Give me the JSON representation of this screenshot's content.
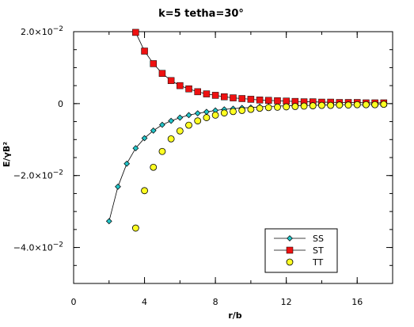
{
  "chart_data": {
    "type": "scatter",
    "title": "k=5 tetha=30°",
    "xlabel": "r/b",
    "ylabel": "E/γB²",
    "xlim": [
      0,
      18
    ],
    "ylim": [
      -0.05,
      0.02
    ],
    "x_ticks": [
      {
        "value": 0,
        "label": "0"
      },
      {
        "value": 4,
        "label": "4"
      },
      {
        "value": 8,
        "label": "8"
      },
      {
        "value": 12,
        "label": "12"
      },
      {
        "value": 16,
        "label": "16"
      }
    ],
    "y_ticks": [
      {
        "value": 0.02,
        "label": "2.0×10",
        "exp": "−2"
      },
      {
        "value": 0,
        "label": "0",
        "exp": ""
      },
      {
        "value": -0.02,
        "label": "−2.0×10",
        "exp": "−2"
      },
      {
        "value": -0.04,
        "label": "−4.0×10",
        "exp": "−2"
      }
    ],
    "legend_position": "bottom-right",
    "series": [
      {
        "name": "SS",
        "marker": "diamond",
        "color": "#22c4c8",
        "line": true,
        "x": [
          2,
          2.5,
          3,
          3.5,
          4,
          4.5,
          5,
          5.5,
          6,
          6.5,
          7,
          7.5,
          8,
          8.5,
          9,
          9.5,
          10,
          10.5,
          11,
          11.5,
          12,
          12.5,
          13,
          13.5,
          14,
          14.5,
          15,
          15.5,
          16,
          16.5,
          17,
          17.5
        ],
        "y": [
          -0.0327,
          -0.0231,
          -0.0167,
          -0.0124,
          -0.0096,
          -0.0075,
          -0.0059,
          -0.0048,
          -0.0039,
          -0.0032,
          -0.0027,
          -0.0023,
          -0.0019,
          -0.0016,
          -0.0014,
          -0.0012,
          -0.0011,
          -0.0009,
          -0.0008,
          -0.0007,
          -0.0006,
          -0.0006,
          -0.0005,
          -0.0005,
          -0.0004,
          -0.0004,
          -0.0003,
          -0.0003,
          -0.0003,
          -0.0003,
          -0.0002,
          -0.0002
        ]
      },
      {
        "name": "ST",
        "marker": "square",
        "color": "#ee1111",
        "line": true,
        "x": [
          3.5,
          4,
          4.5,
          5,
          5.5,
          6,
          6.5,
          7,
          7.5,
          8,
          8.5,
          9,
          9.5,
          10,
          10.5,
          11,
          11.5,
          12,
          12.5,
          13,
          13.5,
          14,
          14.5,
          15,
          15.5,
          16,
          16.5,
          17,
          17.5
        ],
        "y": [
          0.0198,
          0.0146,
          0.0111,
          0.0084,
          0.0064,
          0.005,
          0.0041,
          0.0033,
          0.0027,
          0.0023,
          0.0019,
          0.0016,
          0.0014,
          0.0012,
          0.001,
          0.0009,
          0.0008,
          0.0007,
          0.0006,
          0.0005,
          0.0005,
          0.0004,
          0.0004,
          0.0003,
          0.0003,
          0.0003,
          0.0002,
          0.0002,
          0.0002
        ]
      },
      {
        "name": "TT",
        "marker": "circle",
        "color": "#ffff22",
        "line": false,
        "x": [
          3.5,
          4,
          4.5,
          5,
          5.5,
          6,
          6.5,
          7,
          7.5,
          8,
          8.5,
          9,
          9.5,
          10,
          10.5,
          11,
          11.5,
          12,
          12.5,
          13,
          13.5,
          14,
          14.5,
          15,
          15.5,
          16,
          16.5,
          17,
          17.5
        ],
        "y": [
          -0.0346,
          -0.0242,
          -0.0177,
          -0.0133,
          -0.0098,
          -0.0076,
          -0.006,
          -0.0048,
          -0.0039,
          -0.0032,
          -0.0026,
          -0.0022,
          -0.0019,
          -0.0016,
          -0.0013,
          -0.0011,
          -0.001,
          -0.0009,
          -0.0008,
          -0.0007,
          -0.0006,
          -0.0005,
          -0.0005,
          -0.0004,
          -0.0004,
          -0.0003,
          -0.0003,
          -0.0003,
          -0.0002
        ]
      }
    ]
  }
}
